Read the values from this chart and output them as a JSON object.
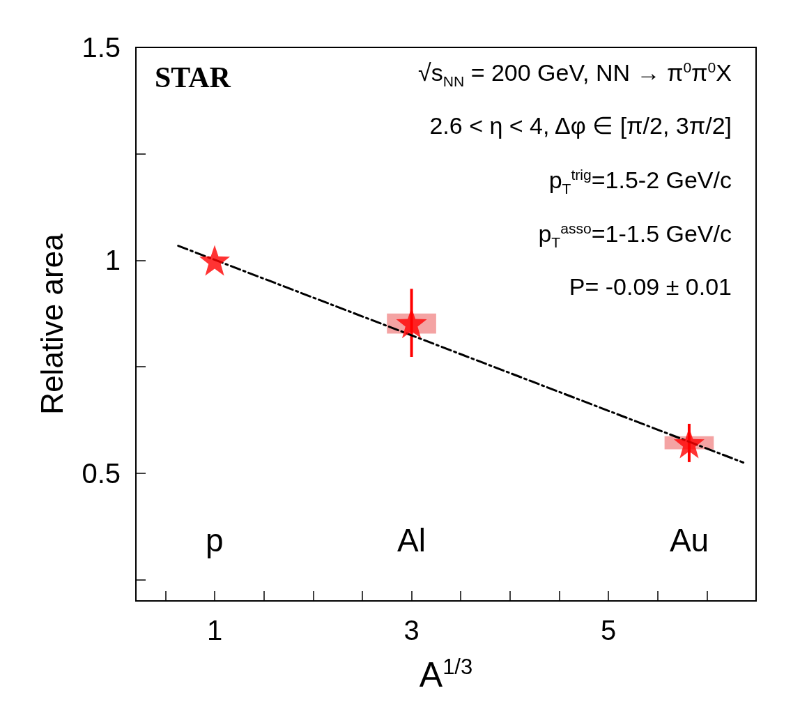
{
  "chart_data": {
    "type": "scatter",
    "xlabel": "A$^{1/3}$",
    "ylabel": "Relative area",
    "xlim": [
      0.2,
      6.5
    ],
    "xticks": [
      {
        "value": 0.5,
        "label": null
      },
      1,
      {
        "value": 1.5,
        "label": null
      },
      {
        "value": 2,
        "label": null
      },
      {
        "value": 2.5,
        "label": null
      },
      3,
      {
        "value": 3.5,
        "label": null
      },
      {
        "value": 4,
        "label": null
      },
      {
        "value": 4.5,
        "label": null
      },
      5,
      {
        "value": 5.5,
        "label": null
      },
      {
        "value": 6,
        "label": null
      }
    ],
    "ylim": [
      0.2,
      1.5
    ],
    "yticks": [
      {
        "value": 0.25,
        "label": null
      },
      0.5,
      {
        "value": 0.75,
        "label": null
      },
      1,
      {
        "value": 1.25,
        "label": null
      },
      1.5
    ],
    "series": [
      {
        "type": "bar",
        "x": [
          3,
          5.82
        ],
        "base": [
          0.828,
          0.556
        ],
        "values": [
          0.047,
          0.031
        ],
        "color": "#f4a3a3"
      },
      {
        "type": "line",
        "x": [
          0.63,
          6.37
        ],
        "values": [
          1.034,
          0.525
        ],
        "color": "#000000",
        "line_style": "dashed",
        "marker": "none"
      },
      {
        "x": [
          1,
          3,
          5.82
        ],
        "values": [
          1.0,
          0.853,
          0.571
        ],
        "errors": [
          null,
          0.08,
          0.045
        ],
        "color": "#ff0000",
        "marker": "star"
      }
    ],
    "annotations": [
      "STAR",
      "√s$_{NN}$ = 200 GeV, NN → π$^{0}$π$^{0}$X",
      "2.6 < η < 4, Δφ ∈ [π/2, 3π/2]",
      "p$_{T}$$^{trig}$=1.5-2 GeV/c",
      "p$_{T}$$^{asso}$=1-1.5 GeV/c",
      "P= -0.09 ± 0.01",
      "p",
      "Al",
      "Au"
    ]
  }
}
